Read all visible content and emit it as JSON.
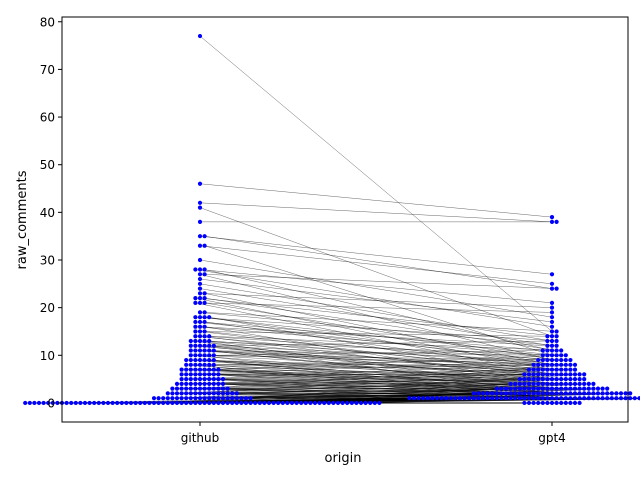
{
  "chart_data": {
    "type": "scatter",
    "plot_style": "paired swarm plot with connecting lines",
    "xlabel": "origin",
    "ylabel": "raw_comments",
    "categories": [
      "github",
      "gpt4"
    ],
    "ylim": [
      -4,
      81
    ],
    "y_ticks": [
      0,
      10,
      20,
      30,
      40,
      50,
      60,
      70,
      80
    ],
    "grid": false,
    "legend": "none",
    "series": [
      {
        "category": "github",
        "values": [
          77,
          46,
          42,
          41,
          38,
          35,
          35,
          33,
          33,
          30,
          28,
          28,
          28,
          27,
          27,
          26,
          25,
          24,
          23,
          23,
          22,
          22,
          22,
          21,
          21,
          21,
          19,
          19,
          18,
          18,
          18,
          18,
          17,
          17,
          17,
          16,
          16,
          16,
          15,
          15,
          15,
          14,
          14,
          14,
          14,
          13,
          13,
          13,
          13,
          13,
          12,
          12,
          12,
          12,
          12,
          12,
          11,
          11,
          11,
          11,
          11,
          11,
          10,
          10,
          10,
          10,
          10,
          10,
          9,
          9,
          9,
          9,
          9,
          9,
          9,
          8,
          8,
          8,
          8,
          8,
          8,
          8,
          7,
          7,
          7,
          7,
          7,
          7,
          7,
          7,
          7,
          6,
          6,
          6,
          6,
          6,
          6,
          6,
          6,
          6,
          5,
          5,
          5,
          5,
          5,
          5,
          5,
          5,
          5,
          5,
          4,
          4,
          4,
          4,
          4,
          4,
          4,
          4,
          4,
          4,
          4,
          3,
          3,
          3,
          3,
          3,
          3,
          3,
          3,
          3,
          3,
          3,
          3,
          3,
          2,
          2,
          2,
          2,
          2,
          2,
          2,
          2,
          2,
          2,
          2,
          2,
          2,
          2,
          2,
          2,
          1,
          1,
          1,
          1,
          1,
          1,
          1,
          1,
          1,
          1,
          1,
          1,
          1,
          1,
          1,
          1,
          1,
          1,
          1,
          1,
          1,
          1,
          0,
          0,
          0,
          0,
          0,
          0,
          0,
          0,
          0,
          0,
          0,
          0,
          0,
          0,
          0,
          0,
          0,
          0,
          0,
          0,
          0,
          0,
          0,
          0,
          0,
          0,
          0,
          0,
          0,
          0,
          0,
          0,
          0,
          0,
          0,
          0,
          0,
          0,
          0,
          0,
          0,
          0,
          0,
          0,
          0,
          0,
          0,
          0,
          0,
          0,
          0,
          0,
          0,
          0,
          0,
          0,
          0,
          0,
          0,
          0,
          0,
          0,
          0,
          0,
          0,
          0,
          0,
          0,
          0,
          0,
          0,
          0,
          0,
          0,
          0,
          0,
          0,
          0
        ]
      },
      {
        "category": "gpt4",
        "values": [
          15,
          39,
          38,
          14,
          38,
          27,
          24,
          25,
          10,
          18,
          21,
          11,
          16,
          9,
          24,
          17,
          13,
          12,
          20,
          8,
          14,
          11,
          7,
          19,
          9,
          6,
          12,
          15,
          10,
          8,
          13,
          5,
          11,
          7,
          9,
          12,
          4,
          10,
          6,
          8,
          14,
          5,
          9,
          7,
          11,
          3,
          6,
          10,
          8,
          4,
          7,
          9,
          5,
          13,
          6,
          2,
          8,
          4,
          10,
          3,
          7,
          5,
          9,
          6,
          2,
          8,
          4,
          11,
          3,
          5,
          7,
          1,
          6,
          2,
          4,
          8,
          3,
          5,
          9,
          1,
          7,
          2,
          4,
          6,
          3,
          10,
          5,
          1,
          8,
          2,
          4,
          6,
          3,
          7,
          1,
          5,
          2,
          9,
          4,
          6,
          3,
          1,
          7,
          2,
          5,
          4,
          8,
          3,
          6,
          1,
          2,
          5,
          4,
          3,
          7,
          1,
          6,
          2,
          4,
          3,
          5,
          1,
          2,
          8,
          3,
          4,
          1,
          6,
          2,
          5,
          3,
          1,
          4,
          2,
          7,
          3,
          1,
          5,
          2,
          4,
          1,
          3,
          6,
          2,
          1,
          4,
          3,
          2,
          5,
          1,
          3,
          2,
          1,
          4,
          2,
          3,
          1,
          2,
          6,
          1,
          3,
          2,
          1,
          4,
          2,
          1,
          3,
          1,
          2,
          5,
          1,
          2,
          3,
          1,
          2,
          1,
          4,
          1,
          2,
          3,
          1,
          2,
          1,
          1,
          2,
          3,
          1,
          2,
          1,
          1,
          4,
          2,
          1,
          1,
          3,
          1,
          2,
          1,
          1,
          2,
          1,
          3,
          1,
          1,
          2,
          1,
          1,
          2,
          1,
          1,
          1,
          2,
          1,
          1,
          1,
          3,
          1,
          1,
          1,
          2,
          1,
          1,
          1,
          1,
          2,
          1,
          1,
          1,
          1,
          1,
          0,
          1,
          1,
          0,
          1,
          0,
          1,
          0,
          0,
          1,
          0,
          0,
          1,
          0,
          0,
          0,
          0,
          0,
          0
        ]
      }
    ],
    "colors": {
      "points": "#0000ff",
      "lines": "#000000",
      "axes": "#000000"
    }
  }
}
